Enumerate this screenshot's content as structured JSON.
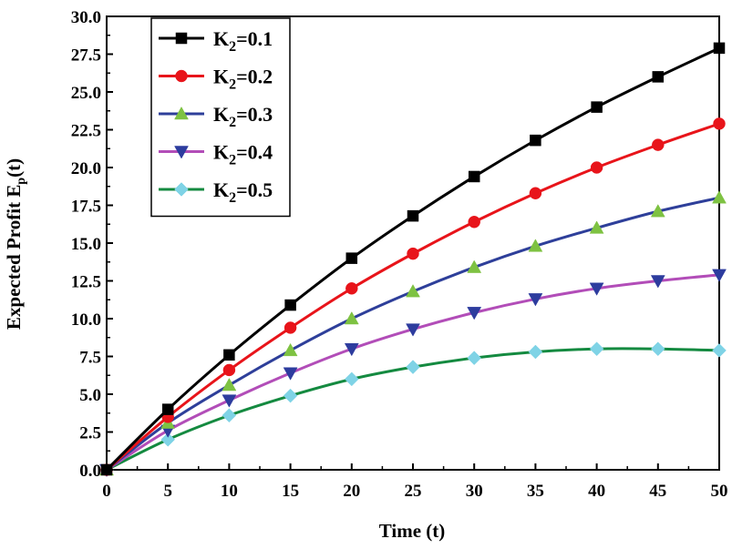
{
  "chart_data": {
    "type": "line",
    "title": "",
    "xlabel": "Time (t)",
    "ylabel": "Expected Profit E",
    "ylabel_subscript": "p",
    "ylabel_suffix": "(t)",
    "xlim": [
      0,
      50
    ],
    "ylim": [
      0,
      30
    ],
    "x_ticks": [
      "0",
      "5",
      "10",
      "15",
      "20",
      "25",
      "30",
      "35",
      "40",
      "45",
      "50"
    ],
    "y_ticks": [
      "0.0",
      "2.5",
      "5.0",
      "7.5",
      "10.0",
      "12.5",
      "15.0",
      "17.5",
      "20.0",
      "22.5",
      "25.0",
      "27.5",
      "30.0"
    ],
    "grid": false,
    "legend_position": "top-left",
    "x": [
      0,
      5,
      10,
      15,
      20,
      25,
      30,
      35,
      40,
      45,
      50
    ],
    "series": [
      {
        "name": "K2=0.1",
        "label_main": "K",
        "label_sub": "2",
        "label_rest": "=0.1",
        "line_color": "#000000",
        "marker": "square",
        "marker_color": "#000000",
        "values": [
          0,
          4.0,
          7.6,
          10.9,
          14.0,
          16.8,
          19.4,
          21.8,
          24.0,
          26.0,
          27.9
        ]
      },
      {
        "name": "K2=0.2",
        "label_main": "K",
        "label_sub": "2",
        "label_rest": "=0.2",
        "line_color": "#e8141a",
        "marker": "circle",
        "marker_color": "#e8141a",
        "values": [
          0,
          3.5,
          6.6,
          9.4,
          12.0,
          14.3,
          16.4,
          18.3,
          20.0,
          21.5,
          22.9
        ]
      },
      {
        "name": "K2=0.3",
        "label_main": "K",
        "label_sub": "2",
        "label_rest": "=0.3",
        "line_color": "#2e3f9a",
        "marker": "triangle-up",
        "marker_color": "#7ec242",
        "values": [
          0,
          3.1,
          5.6,
          7.9,
          10.0,
          11.8,
          13.4,
          14.8,
          16.0,
          17.1,
          18.0
        ]
      },
      {
        "name": "K2=0.4",
        "label_main": "K",
        "label_sub": "2",
        "label_rest": "=0.4",
        "line_color": "#b24db8",
        "marker": "triangle-down",
        "marker_color": "#2d3c9e",
        "values": [
          0,
          2.6,
          4.6,
          6.4,
          8.0,
          9.3,
          10.4,
          11.3,
          12.0,
          12.5,
          12.9
        ]
      },
      {
        "name": "K2=0.5",
        "label_main": "K",
        "label_sub": "2",
        "label_rest": "=0.5",
        "line_color": "#148a40",
        "marker": "diamond",
        "marker_color": "#7fd3e6",
        "values": [
          0,
          2.0,
          3.6,
          4.9,
          6.0,
          6.8,
          7.4,
          7.8,
          8.0,
          8.0,
          7.9
        ]
      }
    ]
  }
}
